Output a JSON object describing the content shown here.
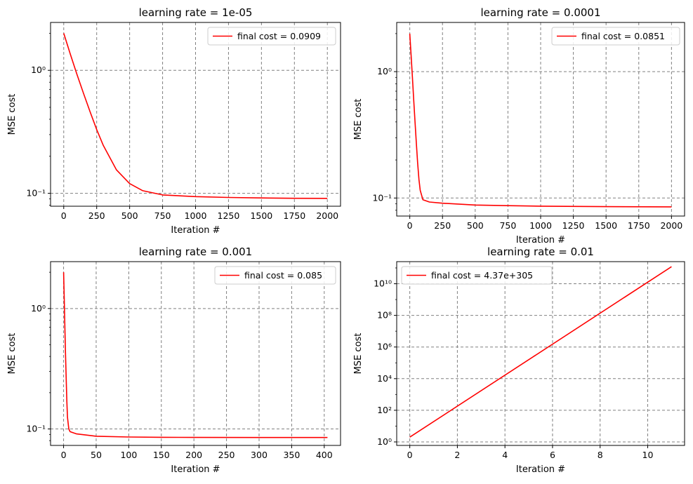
{
  "chart_data": [
    {
      "type": "line",
      "title": "learning rate = 1e-05",
      "xlabel": "Iteration #",
      "ylabel": "MSE cost",
      "yscale": "log",
      "grid": true,
      "legend_loc": "upper right",
      "xlim": [
        -100,
        2100
      ],
      "ylim": [
        0.0785,
        2.45
      ],
      "xticks": [
        0,
        250,
        500,
        750,
        1000,
        1250,
        1500,
        1750,
        2000
      ],
      "xtick_labels": [
        "0",
        "250",
        "500",
        "750",
        "1000",
        "1250",
        "1500",
        "1750",
        "2000"
      ],
      "yticks": [
        0.1,
        1
      ],
      "ytick_labels": [
        "10⁻¹",
        "10⁰"
      ],
      "series": [
        {
          "name": "final cost = 0.0909",
          "color": "#ff0000",
          "x": [
            0,
            50,
            100,
            150,
            200,
            250,
            300,
            400,
            500,
            600,
            750,
            1000,
            1250,
            1500,
            1750,
            2000
          ],
          "y": [
            2.0,
            1.35,
            0.93,
            0.65,
            0.46,
            0.33,
            0.245,
            0.155,
            0.12,
            0.105,
            0.097,
            0.094,
            0.0925,
            0.0916,
            0.0911,
            0.0909
          ]
        }
      ]
    },
    {
      "type": "line",
      "title": "learning rate = 0.0001",
      "xlabel": "Iteration #",
      "ylabel": "MSE cost",
      "yscale": "log",
      "grid": true,
      "legend_loc": "upper right",
      "xlim": [
        -100,
        2100
      ],
      "ylim": [
        0.072,
        2.45
      ],
      "xticks": [
        0,
        250,
        500,
        750,
        1000,
        1250,
        1500,
        1750,
        2000
      ],
      "xtick_labels": [
        "0",
        "250",
        "500",
        "750",
        "1000",
        "1250",
        "1500",
        "1750",
        "2000"
      ],
      "yticks": [
        0.1,
        1
      ],
      "ytick_labels": [
        "10⁻¹",
        "10⁰"
      ],
      "series": [
        {
          "name": "final cost = 0.0851",
          "color": "#ff0000",
          "x": [
            0,
            10,
            20,
            30,
            40,
            50,
            60,
            70,
            80,
            100,
            150,
            250,
            500,
            750,
            1000,
            1500,
            2000
          ],
          "y": [
            2.0,
            1.35,
            0.9,
            0.6,
            0.4,
            0.27,
            0.19,
            0.14,
            0.115,
            0.097,
            0.093,
            0.091,
            0.088,
            0.087,
            0.0862,
            0.0855,
            0.0851
          ]
        }
      ]
    },
    {
      "type": "line",
      "title": "learning rate = 0.001",
      "xlabel": "Iteration #",
      "ylabel": "MSE cost",
      "yscale": "log",
      "grid": true,
      "legend_loc": "upper right",
      "xlim": [
        -20,
        425
      ],
      "ylim": [
        0.073,
        2.45
      ],
      "xticks": [
        0,
        50,
        100,
        150,
        200,
        250,
        300,
        350,
        400
      ],
      "xtick_labels": [
        "0",
        "50",
        "100",
        "150",
        "200",
        "250",
        "300",
        "350",
        "400"
      ],
      "yticks": [
        0.1,
        1
      ],
      "ytick_labels": [
        "10⁻¹",
        "10⁰"
      ],
      "series": [
        {
          "name": "final cost = 0.085",
          "color": "#ff0000",
          "x": [
            0,
            1,
            2,
            3,
            4,
            5,
            6,
            8,
            10,
            20,
            50,
            100,
            150,
            200,
            300,
            405
          ],
          "y": [
            2.0,
            1.2,
            0.7,
            0.42,
            0.26,
            0.17,
            0.125,
            0.1,
            0.095,
            0.091,
            0.087,
            0.0857,
            0.0853,
            0.0851,
            0.085,
            0.085
          ]
        }
      ]
    },
    {
      "type": "line",
      "title": "learning rate = 0.01",
      "xlabel": "Iteration #",
      "ylabel": "MSE cost",
      "yscale": "log",
      "grid": true,
      "legend_loc": "upper left",
      "xlim": [
        -0.55,
        11.55
      ],
      "ylim": [
        0.6,
        250000000000.0
      ],
      "xticks": [
        0,
        2,
        4,
        6,
        8,
        10
      ],
      "xtick_labels": [
        "0",
        "2",
        "4",
        "6",
        "8",
        "10"
      ],
      "yticks": [
        1,
        100,
        10000,
        1000000,
        100000000,
        10000000000
      ],
      "ytick_labels": [
        "10⁰",
        "10²",
        "10⁴",
        "10⁶",
        "10⁸",
        "10¹⁰"
      ],
      "series": [
        {
          "name": "final cost = 4.37e+305",
          "color": "#ff0000",
          "x": [
            0,
            11
          ],
          "y": [
            2.0,
            120000000000
          ]
        }
      ]
    }
  ]
}
